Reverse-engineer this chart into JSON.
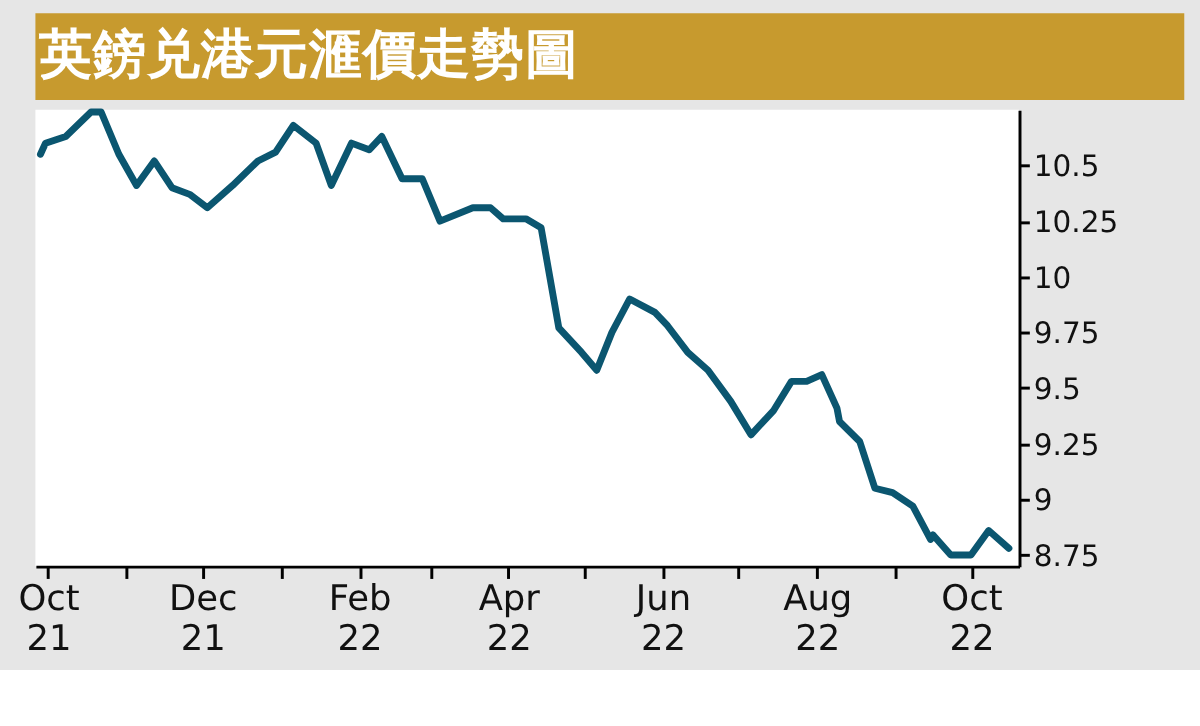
{
  "chart_data": {
    "type": "line",
    "title": "英鎊兑港元滙價走勢圖",
    "x": [
      "2021-09-28",
      "2021-09-30",
      "2021-10-08",
      "2021-10-18",
      "2021-10-22",
      "2021-10-29",
      "2021-11-05",
      "2021-11-12",
      "2021-11-19",
      "2021-11-26",
      "2021-12-03",
      "2021-12-13",
      "2021-12-23",
      "2021-12-30",
      "2022-01-06",
      "2022-01-15",
      "2022-01-21",
      "2022-01-29",
      "2022-02-05",
      "2022-02-10",
      "2022-02-18",
      "2022-02-26",
      "2022-03-05",
      "2022-03-18",
      "2022-03-25",
      "2022-03-30",
      "2022-04-08",
      "2022-04-14",
      "2022-04-21",
      "2022-04-30",
      "2022-05-06",
      "2022-05-12",
      "2022-05-19",
      "2022-05-29",
      "2022-06-03",
      "2022-06-11",
      "2022-06-19",
      "2022-06-28",
      "2022-07-06",
      "2022-07-15",
      "2022-07-22",
      "2022-07-28",
      "2022-08-03",
      "2022-08-09",
      "2022-08-10",
      "2022-08-18",
      "2022-08-24",
      "2022-08-31",
      "2022-09-08",
      "2022-09-15",
      "2022-09-16",
      "2022-09-23",
      "2022-10-01",
      "2022-10-08",
      "2022-10-16"
    ],
    "series": [
      {
        "color": "#0b5670",
        "values": [
          10.55,
          10.6,
          10.63,
          10.74,
          10.74,
          10.55,
          10.41,
          10.52,
          10.4,
          10.37,
          10.31,
          10.41,
          10.52,
          10.56,
          10.68,
          10.6,
          10.41,
          10.6,
          10.57,
          10.63,
          10.44,
          10.44,
          10.25,
          10.31,
          10.31,
          10.26,
          10.26,
          10.22,
          9.77,
          9.66,
          9.58,
          9.75,
          9.9,
          9.84,
          9.78,
          9.66,
          9.58,
          9.44,
          9.29,
          9.4,
          9.53,
          9.53,
          9.56,
          9.41,
          9.35,
          9.26,
          9.05,
          9.03,
          8.97,
          8.82,
          8.84,
          8.75,
          8.75,
          8.86,
          8.78
        ]
      }
    ],
    "xlim": [
      "2021-09-26",
      "2022-10-20"
    ],
    "xticks": [
      {
        "value": "2021-10-01",
        "label": "Oct\n21"
      },
      {
        "value": "2021-11-01",
        "label": null
      },
      {
        "value": "2021-12-01",
        "label": "Dec\n21"
      },
      {
        "value": "2022-01-01",
        "label": null
      },
      {
        "value": "2022-02-01",
        "label": "Feb\n22"
      },
      {
        "value": "2022-03-01",
        "label": null
      },
      {
        "value": "2022-04-01",
        "label": "Apr\n22"
      },
      {
        "value": "2022-05-01",
        "label": null
      },
      {
        "value": "2022-06-01",
        "label": "Jun\n22"
      },
      {
        "value": "2022-07-01",
        "label": null
      },
      {
        "value": "2022-08-01",
        "label": "Aug\n22"
      },
      {
        "value": "2022-09-01",
        "label": null
      },
      {
        "value": "2022-10-01",
        "label": "Oct\n22"
      }
    ],
    "ylim": [
      8.7,
      10.75
    ],
    "yticks": [
      8.75,
      9,
      9.25,
      9.5,
      9.75,
      10,
      10.25,
      10.5
    ],
    "grid": false,
    "marker": "none",
    "line_style": "solid"
  }
}
